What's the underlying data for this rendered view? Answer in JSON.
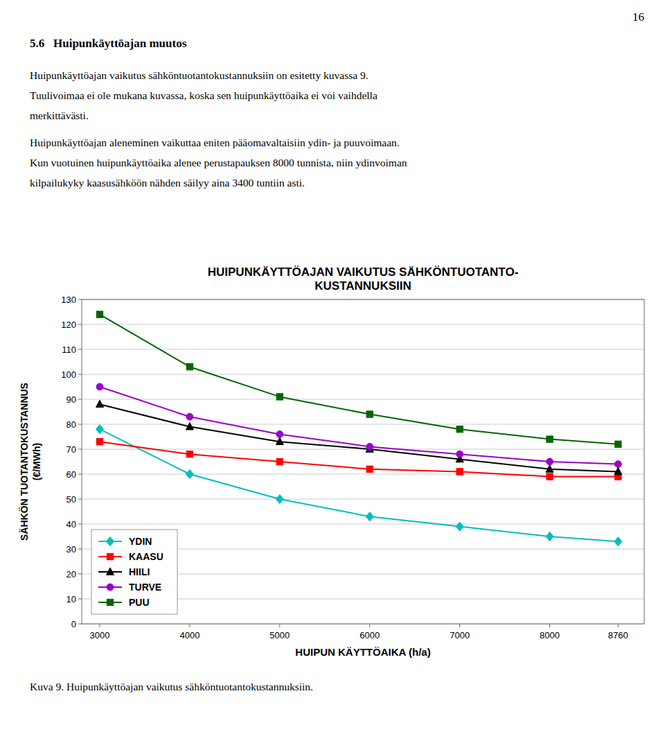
{
  "page_number": "16",
  "section_title": "5.6   Huipunkäyttöajan muutos",
  "paragraphs": [
    [
      "Huipunkäyttöajan vaikutus sähköntuotantokustannuksiin on esitetty kuvassa 9.",
      "Tuulivoimaa ei ole mukana kuvassa, koska sen huipunkäyttöaika ei voi vaihdella",
      "merkittävästi."
    ],
    [
      "Huipunkäyttöajan aleneminen vaikuttaa eniten pääomavaltaisiin ydin- ja puuvoimaan.",
      "Kun vuotuinen huipunkäyttöaika alenee perustapauksen 8000 tunnista, niin ydinvoiman",
      "kilpailukyky kaasusähköön nähden säilyy aina 3400 tuntiin asti."
    ]
  ],
  "caption": "Kuva 9. Huipunkäyttöajan vaikutus sähköntuotantokustannuksiin.",
  "chart_data": {
    "type": "line",
    "title": "HUIPUNKÄYTTÖAJAN VAIKUTUS SÄHKÖNTUOTANTO-\nKUSTANNUKSIIN",
    "x_label": "HUIPUN KÄYTTÖAIKA (h/a)",
    "y_label": "SÄHKÖN TUOTANTOKUSTANNUS\n(€/MWh)",
    "x": [
      3000,
      4000,
      5000,
      6000,
      7000,
      8000,
      8760
    ],
    "series": [
      {
        "name": "YDIN",
        "color": "#00BFBF",
        "marker": "diamond",
        "values": [
          78,
          60,
          50,
          43,
          39,
          35,
          33
        ]
      },
      {
        "name": "KAASU",
        "color": "#FF0000",
        "marker": "square",
        "values": [
          73,
          68,
          65,
          62,
          61,
          59,
          59
        ]
      },
      {
        "name": "HIILI",
        "color": "#000000",
        "marker": "triangle",
        "values": [
          88,
          79,
          73,
          70,
          66,
          62,
          61
        ]
      },
      {
        "name": "TURVE",
        "color": "#9900CC",
        "marker": "circle",
        "values": [
          95,
          83,
          76,
          71,
          68,
          65,
          64
        ]
      },
      {
        "name": "PUU",
        "color": "#006600",
        "marker": "square",
        "values": [
          124,
          103,
          91,
          84,
          78,
          74,
          72
        ]
      }
    ],
    "xlim": [
      2800,
      9050
    ],
    "xticks": [
      3000,
      4000,
      5000,
      6000,
      7000,
      8000,
      8760
    ],
    "ylim": [
      0,
      130
    ],
    "yticks": [
      0,
      10,
      20,
      30,
      40,
      50,
      60,
      70,
      80,
      90,
      100,
      110,
      120,
      130
    ],
    "grid": "y",
    "legend": "lower left"
  }
}
